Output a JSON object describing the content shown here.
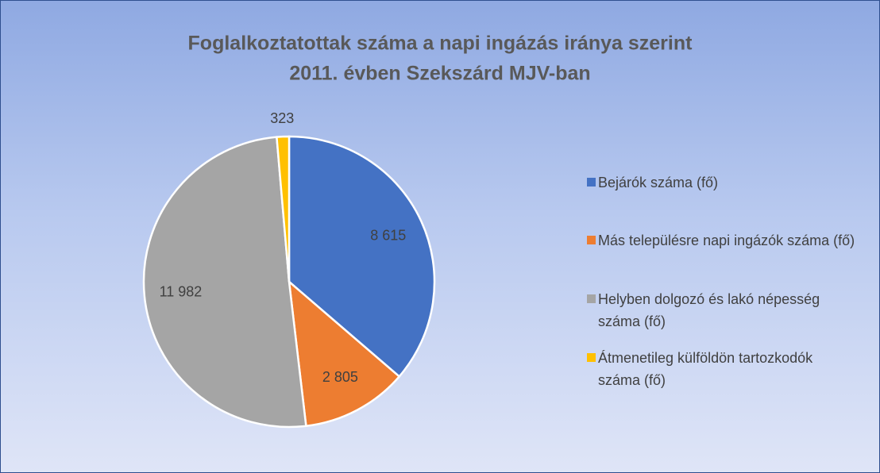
{
  "chart_data": {
    "type": "pie",
    "title": [
      "Foglalkoztatottak száma a napi ingázás iránya szerint",
      "2011. évben Szekszárd MJV-ban"
    ],
    "categories": [
      "Bejárók száma (fő)",
      "Más településre napi ingázók száma (fő)",
      "Helyben dolgozó és lakó népesség száma (fő)",
      "Átmenetileg külföldön tartozkodók száma (fő)"
    ],
    "values": [
      8615,
      2805,
      11982,
      323
    ],
    "value_labels": [
      "8 615",
      "2 805",
      "11 982",
      "323"
    ],
    "colors": [
      "#4472c4",
      "#ed7d31",
      "#a5a5a5",
      "#ffc000"
    ],
    "legend": "right"
  }
}
